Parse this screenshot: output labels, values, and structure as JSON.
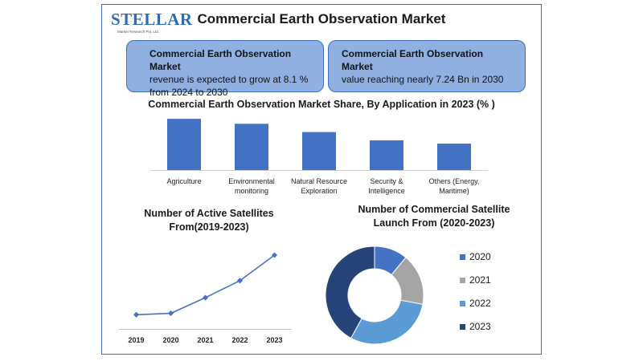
{
  "logo": {
    "text": "STELLAR",
    "tagline": "Market Research Pvt. Ltd."
  },
  "title": "Commercial Earth Observation Market",
  "info_boxes": [
    {
      "heading": "Commercial Earth Observation Market",
      "text": "revenue is expected to grow at 8.1 % from 2024 to 2030"
    },
    {
      "heading": "Commercial Earth Observation Market",
      "text": "value reaching nearly 7.24 Bn in 2030"
    }
  ],
  "colors": {
    "bar": "#4472c4",
    "line": "#4472c4",
    "frame": "#3e6fb6",
    "box": "#8fb0e0"
  },
  "chart_data": [
    {
      "type": "bar",
      "title": "Commercial Earth Observation Market Share, By Application in 2023 (% )",
      "categories": [
        [
          "Agriculture"
        ],
        [
          "Environmental",
          "monitoring"
        ],
        [
          "Natural Resource",
          "Exploration"
        ],
        [
          "Security &",
          "Intelligence"
        ],
        [
          "Others (Energy,",
          "Maritime)"
        ]
      ],
      "values": [
        31,
        28,
        23,
        18,
        16
      ],
      "ylim": [
        0,
        33
      ],
      "grid": false
    },
    {
      "type": "line",
      "title": "Number of Active Satellites From(2019-2023)",
      "x": [
        "2019",
        "2020",
        "2021",
        "2022",
        "2023"
      ],
      "values": [
        10,
        11,
        22,
        34,
        52
      ],
      "ylim": [
        0,
        65
      ],
      "grid": false
    },
    {
      "type": "pie",
      "title": "Number of Commercial Satellite Launch From (2020-2023)",
      "labels": [
        "2020",
        "2021",
        "2022",
        "2023"
      ],
      "values": [
        11,
        17,
        30,
        42
      ],
      "colors": [
        "#4472c4",
        "#a5a5a5",
        "#5b9bd5",
        "#264478"
      ],
      "legend": "right"
    }
  ]
}
